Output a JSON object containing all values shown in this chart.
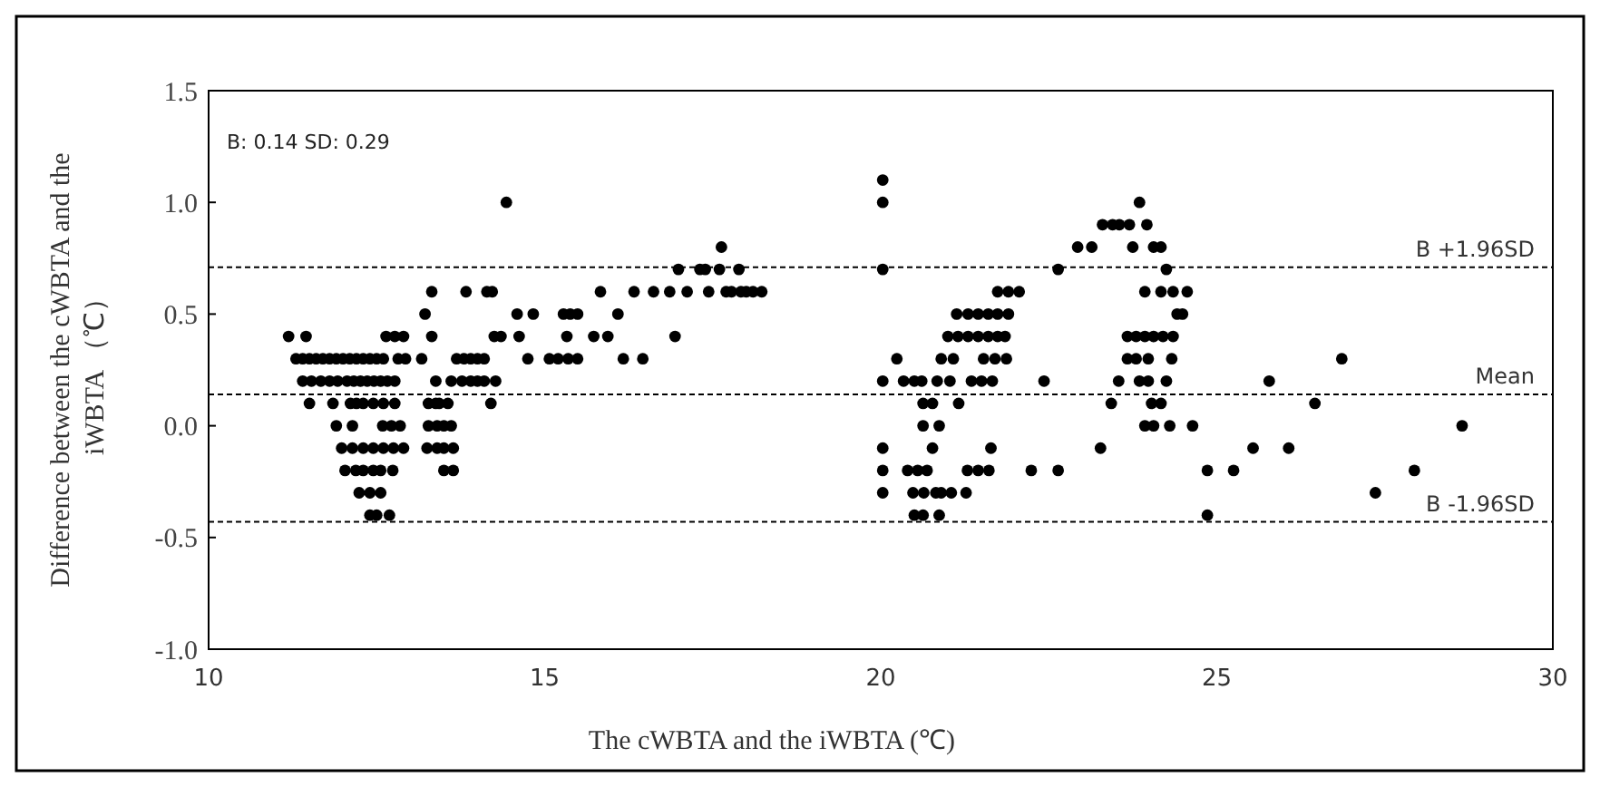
{
  "chart_data": {
    "type": "scatter",
    "xlabel": "The cWBTA and the iWBTA (℃)",
    "ylabel": "Difference between the cWBTA and the\niWBTA （℃）",
    "annotations": [
      "B: 0.14 SD: 0.29"
    ],
    "xlim": [
      10,
      30
    ],
    "xticks": [
      10,
      15,
      20,
      25,
      30
    ],
    "ylim": [
      -1.0,
      1.5
    ],
    "yticks": [
      {
        "value": 1.5,
        "label": "1.5"
      },
      {
        "value": 1.0,
        "label": "1.0"
      },
      {
        "value": 0.5,
        "label": "0.5"
      },
      {
        "value": 0,
        "label": "0.0"
      },
      {
        "value": -0.5,
        "label": "-0.5"
      },
      {
        "value": -1.0,
        "label": "-1.0"
      }
    ],
    "grid": false,
    "marker": "circle",
    "ref_lines": [
      {
        "axis": "y",
        "value": 0.71,
        "label": "B +1.96SD",
        "line_style": "dashed",
        "color": "#000000"
      },
      {
        "axis": "y",
        "value": 0.14,
        "label": "Mean",
        "line_style": "dashed",
        "color": "#000000"
      },
      {
        "axis": "y",
        "value": -0.43,
        "label": "B -1.96SD",
        "line_style": "dashed",
        "color": "#000000"
      }
    ],
    "series": [
      {
        "color": "#000000",
        "x": [
          20.03,
          14.43,
          20.03,
          23.85,
          23.3,
          23.45,
          23.55,
          23.7,
          23.96,
          17.63,
          22.93,
          23.14,
          23.75,
          24.06,
          24.17,
          16.99,
          17.31,
          17.39,
          17.6,
          17.89,
          20.03,
          22.64,
          24.25,
          13.32,
          13.83,
          14.14,
          14.22,
          15.83,
          16.33,
          16.62,
          16.86,
          17.12,
          17.44,
          17.7,
          17.78,
          17.92,
          18.0,
          18.1,
          18.23,
          21.74,
          21.9,
          22.06,
          23.93,
          24.17,
          24.35,
          24.56,
          13.22,
          14.59,
          14.83,
          15.28,
          15.38,
          15.49,
          16.09,
          21.13,
          21.3,
          21.45,
          21.6,
          21.74,
          21.9,
          24.41,
          24.49,
          11.19,
          11.45,
          12.64,
          12.77,
          12.9,
          13.32,
          14.25,
          14.35,
          14.62,
          15.33,
          15.73,
          15.94,
          16.94,
          21.0,
          21.15,
          21.3,
          21.45,
          21.6,
          21.74,
          21.85,
          23.67,
          23.8,
          23.93,
          24.06,
          24.2,
          24.35,
          11.3,
          11.4,
          11.5,
          11.6,
          11.7,
          11.8,
          11.9,
          12.0,
          12.1,
          12.2,
          12.3,
          12.4,
          12.5,
          12.6,
          12.82,
          12.93,
          13.17,
          13.69,
          13.8,
          13.9,
          14.0,
          14.1,
          14.75,
          15.07,
          15.2,
          15.35,
          15.49,
          16.17,
          16.46,
          20.24,
          20.9,
          21.08,
          21.53,
          21.7,
          21.87,
          23.67,
          23.8,
          23.98,
          24.33,
          26.86,
          11.4,
          11.53,
          11.67,
          11.8,
          11.92,
          12.06,
          12.16,
          12.26,
          12.36,
          12.46,
          12.56,
          12.66,
          12.77,
          13.38,
          13.61,
          13.77,
          13.9,
          14.0,
          14.1,
          14.27,
          20.03,
          20.34,
          20.5,
          20.61,
          20.84,
          21.03,
          21.35,
          21.5,
          21.66,
          22.43,
          23.54,
          23.85,
          23.98,
          24.25,
          25.78,
          11.5,
          11.85,
          12.11,
          12.2,
          12.3,
          12.45,
          12.6,
          12.77,
          13.27,
          13.38,
          13.43,
          13.56,
          14.2,
          20.63,
          20.77,
          21.16,
          23.43,
          24.03,
          24.17,
          26.46,
          11.9,
          12.14,
          12.59,
          12.72,
          12.85,
          13.27,
          13.4,
          13.5,
          13.61,
          20.63,
          20.87,
          23.93,
          24.06,
          24.3,
          24.64,
          28.65,
          11.98,
          12.14,
          12.3,
          12.45,
          12.6,
          12.75,
          12.9,
          13.25,
          13.4,
          13.5,
          13.64,
          20.03,
          20.77,
          21.64,
          23.27,
          25.54,
          26.07,
          12.03,
          12.19,
          12.3,
          12.45,
          12.56,
          12.74,
          13.5,
          13.64,
          20.03,
          20.4,
          20.55,
          20.69,
          21.29,
          21.45,
          21.61,
          22.24,
          22.64,
          24.86,
          25.25,
          27.94,
          12.24,
          12.4,
          12.56,
          20.03,
          20.48,
          20.64,
          20.82,
          20.9,
          21.05,
          21.27,
          27.36,
          12.4,
          12.5,
          12.69,
          20.5,
          20.63,
          20.87,
          24.86
        ],
        "values": [
          1.1,
          1.0,
          1.0,
          1.0,
          0.9,
          0.9,
          0.9,
          0.9,
          0.9,
          0.8,
          0.8,
          0.8,
          0.8,
          0.8,
          0.8,
          0.7,
          0.7,
          0.7,
          0.7,
          0.7,
          0.7,
          0.7,
          0.7,
          0.6,
          0.6,
          0.6,
          0.6,
          0.6,
          0.6,
          0.6,
          0.6,
          0.6,
          0.6,
          0.6,
          0.6,
          0.6,
          0.6,
          0.6,
          0.6,
          0.6,
          0.6,
          0.6,
          0.6,
          0.6,
          0.6,
          0.6,
          0.5,
          0.5,
          0.5,
          0.5,
          0.5,
          0.5,
          0.5,
          0.5,
          0.5,
          0.5,
          0.5,
          0.5,
          0.5,
          0.5,
          0.5,
          0.4,
          0.4,
          0.4,
          0.4,
          0.4,
          0.4,
          0.4,
          0.4,
          0.4,
          0.4,
          0.4,
          0.4,
          0.4,
          0.4,
          0.4,
          0.4,
          0.4,
          0.4,
          0.4,
          0.4,
          0.4,
          0.4,
          0.4,
          0.4,
          0.4,
          0.4,
          0.3,
          0.3,
          0.3,
          0.3,
          0.3,
          0.3,
          0.3,
          0.3,
          0.3,
          0.3,
          0.3,
          0.3,
          0.3,
          0.3,
          0.3,
          0.3,
          0.3,
          0.3,
          0.3,
          0.3,
          0.3,
          0.3,
          0.3,
          0.3,
          0.3,
          0.3,
          0.3,
          0.3,
          0.3,
          0.3,
          0.3,
          0.3,
          0.3,
          0.3,
          0.3,
          0.3,
          0.3,
          0.3,
          0.3,
          0.3,
          0.2,
          0.2,
          0.2,
          0.2,
          0.2,
          0.2,
          0.2,
          0.2,
          0.2,
          0.2,
          0.2,
          0.2,
          0.2,
          0.2,
          0.2,
          0.2,
          0.2,
          0.2,
          0.2,
          0.2,
          0.2,
          0.2,
          0.2,
          0.2,
          0.2,
          0.2,
          0.2,
          0.2,
          0.2,
          0.2,
          0.2,
          0.2,
          0.2,
          0.2,
          0.2,
          0.1,
          0.1,
          0.1,
          0.1,
          0.1,
          0.1,
          0.1,
          0.1,
          0.1,
          0.1,
          0.1,
          0.1,
          0.1,
          0.1,
          0.1,
          0.1,
          0.1,
          0.1,
          0.1,
          0.1,
          0.0,
          0.0,
          0.0,
          0.0,
          0.0,
          0.0,
          0.0,
          0.0,
          0.0,
          0.0,
          0.0,
          0.0,
          0.0,
          0.0,
          0.0,
          0.0,
          -0.1,
          -0.1,
          -0.1,
          -0.1,
          -0.1,
          -0.1,
          -0.1,
          -0.1,
          -0.1,
          -0.1,
          -0.1,
          -0.1,
          -0.1,
          -0.1,
          -0.1,
          -0.1,
          -0.1,
          -0.2,
          -0.2,
          -0.2,
          -0.2,
          -0.2,
          -0.2,
          -0.2,
          -0.2,
          -0.2,
          -0.2,
          -0.2,
          -0.2,
          -0.2,
          -0.2,
          -0.2,
          -0.2,
          -0.2,
          -0.2,
          -0.2,
          -0.2,
          -0.3,
          -0.3,
          -0.3,
          -0.3,
          -0.3,
          -0.3,
          -0.3,
          -0.3,
          -0.3,
          -0.3,
          -0.3,
          -0.4,
          -0.4,
          -0.4,
          -0.4,
          -0.4,
          -0.4,
          -0.4
        ]
      }
    ]
  }
}
